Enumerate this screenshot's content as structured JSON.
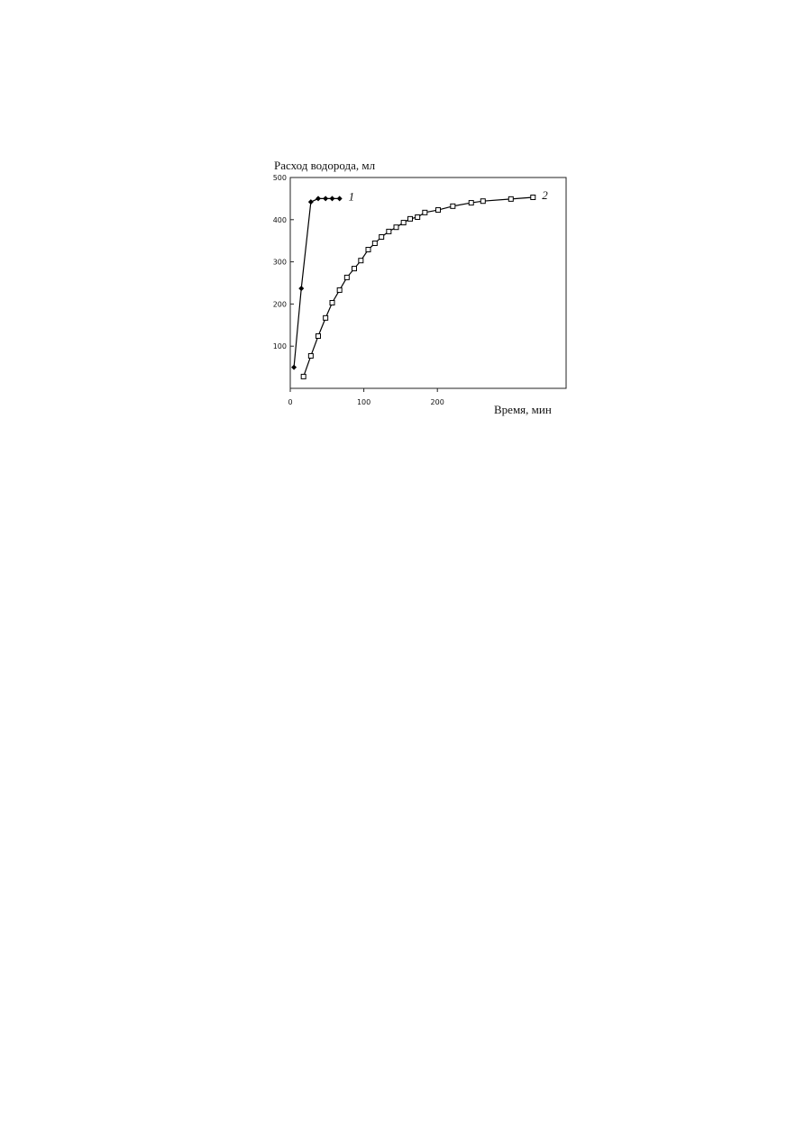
{
  "chart_data": {
    "type": "line",
    "y_label": "Расход водорода, мл",
    "x_label": "Время, мин",
    "xlim": [
      0,
      375
    ],
    "xticks": [
      0,
      100,
      200
    ],
    "ylim": [
      0,
      500
    ],
    "yticks": [
      100,
      200,
      300,
      400,
      500
    ],
    "series": [
      {
        "name": "1",
        "color": "#000000",
        "marker": "diamond",
        "x": [
          5,
          15,
          28,
          38,
          48,
          57,
          67
        ],
        "values": [
          50,
          237,
          442,
          450,
          450,
          450,
          450
        ]
      },
      {
        "name": "2",
        "color": "#000000",
        "marker": "square",
        "x": [
          18,
          28,
          38,
          48,
          57,
          67,
          77,
          87,
          96,
          106,
          115,
          124,
          134,
          144,
          154,
          163,
          173,
          183,
          201,
          221,
          246,
          262,
          300,
          330
        ],
        "values": [
          28,
          77,
          124,
          167,
          203,
          233,
          263,
          284,
          303,
          329,
          344,
          359,
          372,
          382,
          393,
          402,
          406,
          417,
          423,
          432,
          440,
          444,
          449,
          453
        ]
      }
    ]
  }
}
